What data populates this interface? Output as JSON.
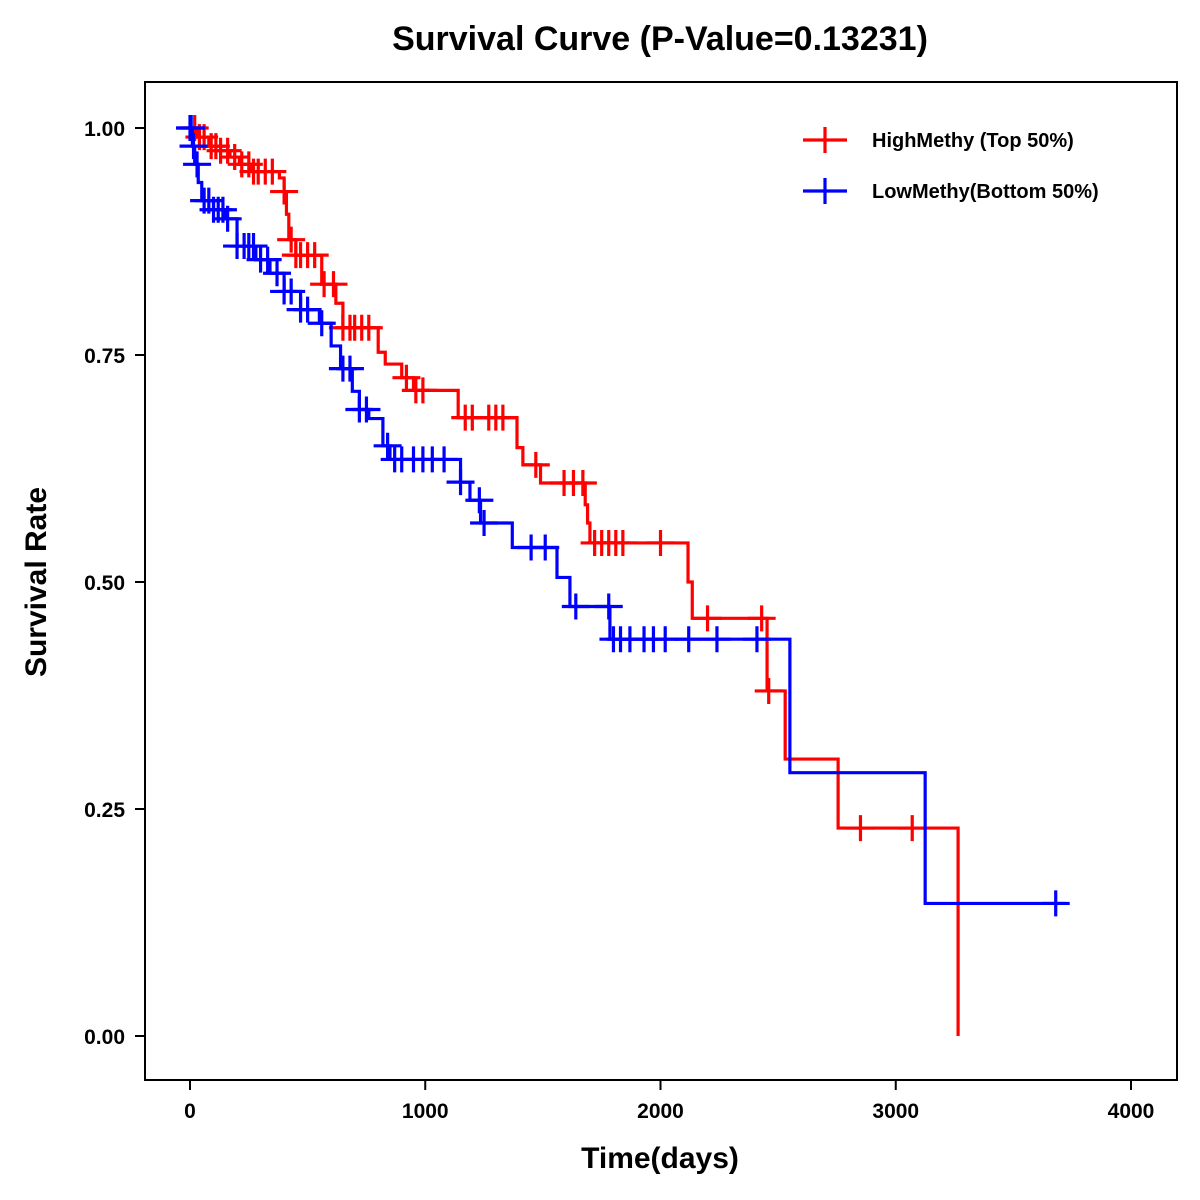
{
  "chart_data": {
    "type": "line",
    "subtype": "kaplan-meier step",
    "title": "Survival Curve (P-Value=0.13231)",
    "xlabel": "Time(days)",
    "ylabel": "Survival Rate",
    "xlim": [
      -190,
      4190
    ],
    "ylim": [
      -0.05,
      1.05
    ],
    "xticks": [
      0,
      1000,
      2000,
      3000,
      4000
    ],
    "xtick_labels": [
      "0",
      "1000",
      "2000",
      "3000",
      "4000"
    ],
    "yticks": [
      0,
      0.25,
      0.5,
      0.75,
      1
    ],
    "ytick_labels": [
      "0.00",
      "0.25",
      "0.50",
      "0.75",
      "1.00"
    ],
    "legend_position": "top-right",
    "grid": false,
    "series": [
      {
        "name": "HighMethy (Top 50%)",
        "color": "#ff0000",
        "steps": [
          [
            0,
            1.0
          ],
          [
            30,
            0.99
          ],
          [
            80,
            0.98
          ],
          [
            130,
            0.975
          ],
          [
            170,
            0.968
          ],
          [
            210,
            0.96
          ],
          [
            260,
            0.952
          ],
          [
            380,
            0.945
          ],
          [
            400,
            0.93
          ],
          [
            410,
            0.905
          ],
          [
            420,
            0.877
          ],
          [
            450,
            0.86
          ],
          [
            560,
            0.828
          ],
          [
            620,
            0.807
          ],
          [
            650,
            0.78
          ],
          [
            800,
            0.753
          ],
          [
            830,
            0.74
          ],
          [
            900,
            0.725
          ],
          [
            950,
            0.711
          ],
          [
            1140,
            0.681
          ],
          [
            1390,
            0.648
          ],
          [
            1415,
            0.629
          ],
          [
            1490,
            0.609
          ],
          [
            1680,
            0.585
          ],
          [
            1690,
            0.565
          ],
          [
            1700,
            0.543
          ],
          [
            2117,
            0.5
          ],
          [
            2135,
            0.46
          ],
          [
            2453,
            0.38
          ],
          [
            2530,
            0.305
          ],
          [
            2755,
            0.229
          ],
          [
            3265,
            0.0
          ]
        ],
        "end": 3265,
        "censored": [
          20,
          40,
          60,
          90,
          110,
          130,
          160,
          190,
          220,
          250,
          270,
          290,
          320,
          350,
          400,
          430,
          450,
          470,
          500,
          530,
          570,
          610,
          650,
          680,
          700,
          730,
          760,
          920,
          960,
          990,
          1170,
          1200,
          1270,
          1300,
          1330,
          1470,
          1590,
          1630,
          1670,
          1720,
          1750,
          1780,
          1810,
          1840,
          2000,
          2200,
          2430,
          2460,
          2850,
          3070
        ]
      },
      {
        "name": "LowMethy(Bottom 50%)",
        "color": "#0000ff",
        "steps": [
          [
            0,
            1.0
          ],
          [
            10,
            0.98
          ],
          [
            20,
            0.96
          ],
          [
            35,
            0.94
          ],
          [
            50,
            0.92
          ],
          [
            100,
            0.91
          ],
          [
            150,
            0.9
          ],
          [
            200,
            0.87
          ],
          [
            280,
            0.855
          ],
          [
            340,
            0.84
          ],
          [
            400,
            0.82
          ],
          [
            470,
            0.8
          ],
          [
            550,
            0.785
          ],
          [
            600,
            0.76
          ],
          [
            640,
            0.735
          ],
          [
            690,
            0.71
          ],
          [
            720,
            0.69
          ],
          [
            760,
            0.68
          ],
          [
            820,
            0.65
          ],
          [
            850,
            0.635
          ],
          [
            1150,
            0.61
          ],
          [
            1190,
            0.59
          ],
          [
            1235,
            0.565
          ],
          [
            1370,
            0.538
          ],
          [
            1560,
            0.505
          ],
          [
            1615,
            0.473
          ],
          [
            1785,
            0.437
          ],
          [
            2550,
            0.29
          ],
          [
            3125,
            0.146
          ]
        ],
        "end": 3720,
        "censored": [
          0,
          5,
          15,
          30,
          60,
          80,
          100,
          120,
          140,
          160,
          200,
          230,
          250,
          270,
          300,
          330,
          370,
          400,
          430,
          470,
          500,
          560,
          650,
          680,
          720,
          750,
          840,
          870,
          900,
          950,
          990,
          1030,
          1080,
          1150,
          1230,
          1250,
          1450,
          1510,
          1640,
          1780,
          1800,
          1830,
          1870,
          1930,
          1970,
          2020,
          2120,
          2240,
          2410,
          3680
        ]
      }
    ]
  }
}
